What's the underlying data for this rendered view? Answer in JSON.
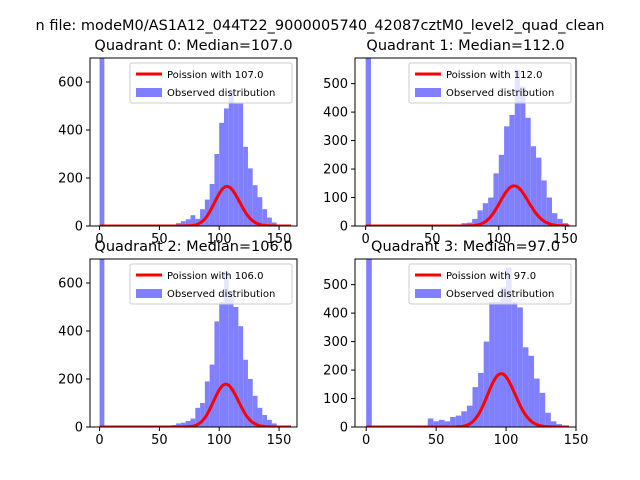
{
  "figure": {
    "suptitle": "n file: modeM0/AS1A12_044T22_9000005740_42087cztM0_level2_quad_clean"
  },
  "colors": {
    "hist": "#7f7fff",
    "poisson": "#ff0000",
    "axis": "#000000",
    "background": "#ffffff"
  },
  "chart_data": [
    {
      "type": "bar",
      "title": "Quadrant 0: Median=107.0",
      "xlabel": "",
      "ylabel": "",
      "xlim": [
        -8,
        165
      ],
      "ylim": [
        0,
        700
      ],
      "xticks": [
        0,
        50,
        100,
        150
      ],
      "yticks": [
        0,
        200,
        400,
        600
      ],
      "grid": false,
      "legend_position": "top-right",
      "median": 107,
      "series": [
        {
          "name": "Poission with 107.0",
          "kind": "line",
          "mean": 107,
          "x_range": [
            0,
            160
          ]
        },
        {
          "name": "Observed distribution",
          "kind": "histogram",
          "bin_width": 4,
          "bins": [
            [
              0,
              4,
              700
            ],
            [
              64,
              68,
              12
            ],
            [
              68,
              72,
              20
            ],
            [
              72,
              76,
              28
            ],
            [
              76,
              80,
              45
            ],
            [
              80,
              84,
              30
            ],
            [
              84,
              88,
              70
            ],
            [
              88,
              92,
              110
            ],
            [
              92,
              96,
              175
            ],
            [
              96,
              100,
              300
            ],
            [
              100,
              104,
              430
            ],
            [
              104,
              108,
              490
            ],
            [
              108,
              112,
              560
            ],
            [
              112,
              116,
              510
            ],
            [
              116,
              120,
              510
            ],
            [
              120,
              124,
              330
            ],
            [
              124,
              128,
              240
            ],
            [
              128,
              132,
              170
            ],
            [
              132,
              136,
              120
            ],
            [
              136,
              140,
              70
            ],
            [
              140,
              144,
              35
            ],
            [
              144,
              148,
              15
            ],
            [
              148,
              152,
              5
            ]
          ]
        }
      ]
    },
    {
      "type": "bar",
      "title": "Quadrant 1: Median=112.0",
      "xlabel": "",
      "ylabel": "",
      "xlim": [
        -8,
        158
      ],
      "ylim": [
        0,
        590
      ],
      "xticks": [
        0,
        50,
        100,
        150
      ],
      "yticks": [
        0,
        100,
        200,
        300,
        400,
        500
      ],
      "grid": false,
      "legend_position": "top-right",
      "median": 112,
      "series": [
        {
          "name": "Poission with 112.0",
          "kind": "line",
          "mean": 112,
          "x_range": [
            0,
            153
          ]
        },
        {
          "name": "Observed distribution",
          "kind": "histogram",
          "bin_width": 4,
          "bins": [
            [
              0,
              4,
              590
            ],
            [
              68,
              72,
              5
            ],
            [
              72,
              76,
              10
            ],
            [
              76,
              80,
              12
            ],
            [
              80,
              84,
              25
            ],
            [
              84,
              88,
              55
            ],
            [
              88,
              92,
              80
            ],
            [
              92,
              96,
              100
            ],
            [
              96,
              100,
              185
            ],
            [
              100,
              104,
              250
            ],
            [
              104,
              108,
              350
            ],
            [
              108,
              112,
              390
            ],
            [
              112,
              116,
              550
            ],
            [
              116,
              120,
              490
            ],
            [
              120,
              124,
              380
            ],
            [
              124,
              128,
              280
            ],
            [
              128,
              132,
              240
            ],
            [
              132,
              136,
              160
            ],
            [
              136,
              140,
              100
            ],
            [
              140,
              144,
              45
            ],
            [
              144,
              148,
              25
            ],
            [
              148,
              152,
              10
            ]
          ]
        }
      ]
    },
    {
      "type": "bar",
      "title": "Quadrant 2: Median=106.0",
      "xlabel": "",
      "ylabel": "",
      "xlim": [
        -8,
        165
      ],
      "ylim": [
        0,
        700
      ],
      "xticks": [
        0,
        50,
        100,
        150
      ],
      "yticks": [
        0,
        200,
        400,
        600
      ],
      "grid": false,
      "legend_position": "top-right",
      "median": 106,
      "series": [
        {
          "name": "Poission with 106.0",
          "kind": "line",
          "mean": 106,
          "x_range": [
            0,
            160
          ]
        },
        {
          "name": "Observed distribution",
          "kind": "histogram",
          "bin_width": 4,
          "bins": [
            [
              0,
              4,
              700
            ],
            [
              60,
              64,
              8
            ],
            [
              64,
              68,
              15
            ],
            [
              68,
              72,
              18
            ],
            [
              72,
              76,
              25
            ],
            [
              76,
              80,
              35
            ],
            [
              80,
              84,
              80
            ],
            [
              84,
              88,
              100
            ],
            [
              88,
              92,
              190
            ],
            [
              92,
              96,
              260
            ],
            [
              96,
              100,
              440
            ],
            [
              100,
              104,
              520
            ],
            [
              104,
              108,
              650
            ],
            [
              108,
              112,
              560
            ],
            [
              112,
              116,
              500
            ],
            [
              116,
              120,
              420
            ],
            [
              120,
              124,
              280
            ],
            [
              124,
              128,
              200
            ],
            [
              128,
              132,
              130
            ],
            [
              132,
              136,
              80
            ],
            [
              136,
              140,
              50
            ],
            [
              140,
              144,
              30
            ],
            [
              144,
              148,
              15
            ],
            [
              148,
              152,
              5
            ]
          ]
        }
      ]
    },
    {
      "type": "bar",
      "title": "Quadrant 3: Median=97.0",
      "xlabel": "",
      "ylabel": "",
      "xlim": [
        -8,
        150
      ],
      "ylim": [
        0,
        590
      ],
      "xticks": [
        0,
        50,
        100,
        150
      ],
      "yticks": [
        0,
        100,
        200,
        300,
        400,
        500
      ],
      "grid": false,
      "legend_position": "top-right",
      "median": 97,
      "series": [
        {
          "name": "Poission with 97.0",
          "kind": "line",
          "mean": 97,
          "x_range": [
            0,
            145
          ]
        },
        {
          "name": "Observed distribution",
          "kind": "histogram",
          "bin_width": 4,
          "bins": [
            [
              0,
              4,
              590
            ],
            [
              44,
              48,
              30
            ],
            [
              48,
              52,
              20
            ],
            [
              52,
              56,
              25
            ],
            [
              56,
              60,
              20
            ],
            [
              60,
              64,
              35
            ],
            [
              64,
              68,
              40
            ],
            [
              68,
              72,
              55
            ],
            [
              72,
              76,
              75
            ],
            [
              76,
              80,
              140
            ],
            [
              80,
              84,
              190
            ],
            [
              84,
              88,
              300
            ],
            [
              88,
              92,
              440
            ],
            [
              92,
              96,
              440
            ],
            [
              96,
              100,
              490
            ],
            [
              100,
              104,
              560
            ],
            [
              104,
              108,
              440
            ],
            [
              108,
              112,
              420
            ],
            [
              112,
              116,
              280
            ],
            [
              116,
              120,
              250
            ],
            [
              120,
              124,
              170
            ],
            [
              124,
              128,
              120
            ],
            [
              128,
              132,
              50
            ],
            [
              132,
              136,
              20
            ],
            [
              136,
              140,
              10
            ],
            [
              140,
              144,
              5
            ]
          ]
        }
      ]
    }
  ]
}
